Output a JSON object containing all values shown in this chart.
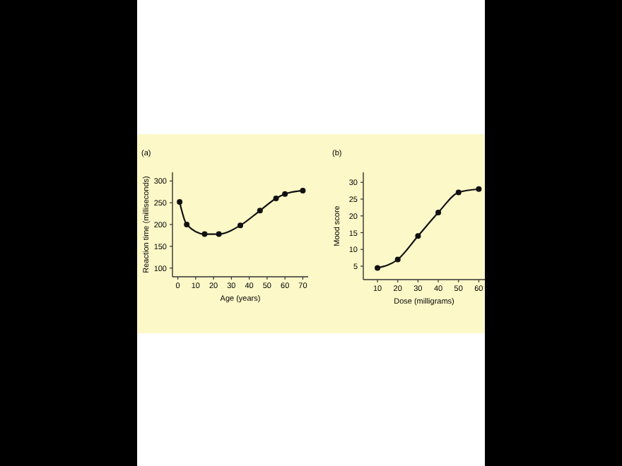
{
  "chart_data": [
    {
      "type": "line",
      "title": "(a)",
      "xlabel": "Age (years)",
      "ylabel": "Reaction time (milliseconds)",
      "marker": "circle",
      "xlim": [
        -3,
        73
      ],
      "xticks": [
        0,
        10,
        20,
        30,
        40,
        50,
        60,
        70
      ],
      "ylim": [
        80,
        320
      ],
      "yticks": [
        100,
        150,
        200,
        250,
        300
      ],
      "series": [
        {
          "color": "#111111",
          "x": [
            1,
            5,
            15,
            23,
            35,
            46,
            55,
            60,
            70
          ],
          "values": [
            252,
            200,
            178,
            178,
            198,
            232,
            260,
            270,
            278
          ]
        }
      ]
    },
    {
      "type": "line",
      "title": "(b)",
      "xlabel": "Dose (milligrams)",
      "ylabel": "Mood score",
      "marker": "circle",
      "xlim": [
        3,
        63
      ],
      "xticks": [
        10,
        20,
        30,
        40,
        50,
        60
      ],
      "ylim": [
        1,
        33
      ],
      "yticks": [
        5,
        10,
        15,
        20,
        25,
        30
      ],
      "series": [
        {
          "color": "#111111",
          "x": [
            10,
            20,
            30,
            40,
            50,
            60
          ],
          "values": [
            4.5,
            7,
            14,
            21,
            27,
            28
          ]
        }
      ]
    }
  ]
}
